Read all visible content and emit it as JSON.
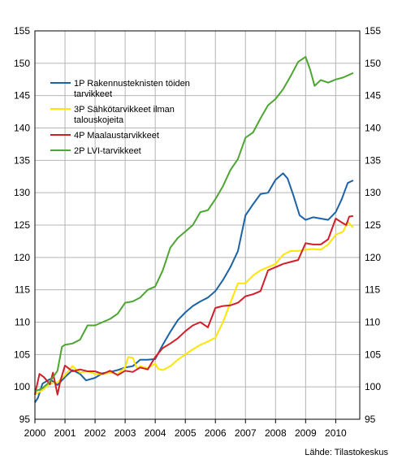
{
  "chart_data": {
    "type": "line",
    "source": "Lähde: Tilastokeskus",
    "x_ticks": [
      "2000",
      "2001",
      "2002",
      "2003",
      "2004",
      "2005",
      "2006",
      "2007",
      "2008",
      "2009",
      "2010"
    ],
    "ylim": [
      95,
      155
    ],
    "y_ticks": [
      "95",
      "100",
      "105",
      "110",
      "115",
      "120",
      "125",
      "130",
      "135",
      "140",
      "145",
      "150",
      "155"
    ],
    "grid": true,
    "legend_position": "top-left",
    "series": [
      {
        "name": "1P Rakennusteknisten töiden tarvikkeet",
        "legend_lines": [
          "1P Rakennusteknisten töiden",
          "tarvikkeet"
        ],
        "color": "#1c63a6",
        "points": [
          [
            2000.0,
            97.6
          ],
          [
            2000.1,
            98.3
          ],
          [
            2000.25,
            100.5
          ],
          [
            2000.5,
            101.2
          ],
          [
            2000.75,
            100.3
          ],
          [
            2001.0,
            101.5
          ],
          [
            2001.25,
            102.6
          ],
          [
            2001.5,
            102.0
          ],
          [
            2001.7,
            101.0
          ],
          [
            2002.0,
            101.4
          ],
          [
            2002.25,
            102.1
          ],
          [
            2002.5,
            102.3
          ],
          [
            2002.75,
            102.6
          ],
          [
            2003.0,
            103.0
          ],
          [
            2003.25,
            103.2
          ],
          [
            2003.5,
            104.2
          ],
          [
            2003.75,
            104.2
          ],
          [
            2004.0,
            104.3
          ],
          [
            2004.25,
            106.5
          ],
          [
            2004.5,
            108.5
          ],
          [
            2004.75,
            110.3
          ],
          [
            2005.0,
            111.5
          ],
          [
            2005.25,
            112.5
          ],
          [
            2005.5,
            113.2
          ],
          [
            2005.75,
            113.8
          ],
          [
            2006.0,
            114.8
          ],
          [
            2006.25,
            116.5
          ],
          [
            2006.5,
            118.5
          ],
          [
            2006.75,
            121.0
          ],
          [
            2007.0,
            126.5
          ],
          [
            2007.25,
            128.2
          ],
          [
            2007.5,
            129.8
          ],
          [
            2007.75,
            130.0
          ],
          [
            2008.0,
            132.0
          ],
          [
            2008.25,
            133.0
          ],
          [
            2008.4,
            132.2
          ],
          [
            2008.6,
            129.5
          ],
          [
            2008.8,
            126.5
          ],
          [
            2009.0,
            125.8
          ],
          [
            2009.25,
            126.2
          ],
          [
            2009.5,
            126.0
          ],
          [
            2009.75,
            125.8
          ],
          [
            2010.0,
            127.0
          ],
          [
            2010.2,
            129.0
          ],
          [
            2010.4,
            131.5
          ],
          [
            2010.58,
            131.9
          ]
        ]
      },
      {
        "name": "3P Sähkötarvikkeet ilman talouskojeita",
        "legend_lines": [
          "3P Sähkötarvikkeet ilman",
          "talouskojeita"
        ],
        "color": "#ffe500",
        "points": [
          [
            2000.0,
            98.8
          ],
          [
            2000.25,
            99.5
          ],
          [
            2000.5,
            100.5
          ],
          [
            2000.75,
            100.7
          ],
          [
            2001.0,
            101.8
          ],
          [
            2001.25,
            103.2
          ],
          [
            2001.5,
            102.2
          ],
          [
            2001.75,
            102.4
          ],
          [
            2002.0,
            102.0
          ],
          [
            2002.25,
            102.0
          ],
          [
            2002.5,
            102.2
          ],
          [
            2002.75,
            102.0
          ],
          [
            2003.0,
            103.0
          ],
          [
            2003.1,
            104.6
          ],
          [
            2003.25,
            104.5
          ],
          [
            2003.4,
            102.8
          ],
          [
            2003.5,
            103.2
          ],
          [
            2003.75,
            102.9
          ],
          [
            2004.0,
            103.6
          ],
          [
            2004.1,
            102.8
          ],
          [
            2004.25,
            102.6
          ],
          [
            2004.5,
            103.2
          ],
          [
            2004.75,
            104.2
          ],
          [
            2005.0,
            105.0
          ],
          [
            2005.25,
            105.8
          ],
          [
            2005.5,
            106.5
          ],
          [
            2005.75,
            107.0
          ],
          [
            2006.0,
            107.6
          ],
          [
            2006.25,
            110.0
          ],
          [
            2006.5,
            113.0
          ],
          [
            2006.75,
            116.0
          ],
          [
            2007.0,
            116.0
          ],
          [
            2007.25,
            117.2
          ],
          [
            2007.5,
            118.0
          ],
          [
            2007.75,
            118.5
          ],
          [
            2008.0,
            119.0
          ],
          [
            2008.25,
            120.4
          ],
          [
            2008.5,
            121.0
          ],
          [
            2008.75,
            121.0
          ],
          [
            2009.0,
            121.2
          ],
          [
            2009.25,
            121.3
          ],
          [
            2009.5,
            121.2
          ],
          [
            2009.75,
            122.0
          ],
          [
            2010.0,
            123.5
          ],
          [
            2010.25,
            124.0
          ],
          [
            2010.4,
            125.5
          ],
          [
            2010.58,
            124.6
          ]
        ]
      },
      {
        "name": "4P Maalaustarvikkeet",
        "legend_lines": [
          "4P Maalaustarvikkeet"
        ],
        "color": "#d01f28",
        "points": [
          [
            2000.0,
            98.8
          ],
          [
            2000.15,
            102.0
          ],
          [
            2000.3,
            101.5
          ],
          [
            2000.5,
            100.4
          ],
          [
            2000.6,
            102.2
          ],
          [
            2000.75,
            98.8
          ],
          [
            2000.85,
            101.0
          ],
          [
            2001.0,
            103.3
          ],
          [
            2001.25,
            102.4
          ],
          [
            2001.5,
            102.7
          ],
          [
            2001.75,
            102.4
          ],
          [
            2002.0,
            102.4
          ],
          [
            2002.25,
            102.0
          ],
          [
            2002.5,
            102.5
          ],
          [
            2002.75,
            101.8
          ],
          [
            2003.0,
            102.5
          ],
          [
            2003.25,
            102.3
          ],
          [
            2003.5,
            103.0
          ],
          [
            2003.75,
            102.7
          ],
          [
            2004.0,
            104.6
          ],
          [
            2004.25,
            106.0
          ],
          [
            2004.5,
            106.7
          ],
          [
            2004.75,
            107.5
          ],
          [
            2005.0,
            108.6
          ],
          [
            2005.25,
            109.5
          ],
          [
            2005.5,
            110.0
          ],
          [
            2005.75,
            109.2
          ],
          [
            2006.0,
            112.2
          ],
          [
            2006.25,
            112.5
          ],
          [
            2006.5,
            112.6
          ],
          [
            2006.75,
            113.0
          ],
          [
            2007.0,
            114.0
          ],
          [
            2007.25,
            114.3
          ],
          [
            2007.5,
            114.8
          ],
          [
            2007.75,
            118.0
          ],
          [
            2008.0,
            118.5
          ],
          [
            2008.25,
            119.0
          ],
          [
            2008.5,
            119.3
          ],
          [
            2008.75,
            119.6
          ],
          [
            2009.0,
            122.2
          ],
          [
            2009.25,
            122.0
          ],
          [
            2009.5,
            122.0
          ],
          [
            2009.75,
            122.8
          ],
          [
            2010.0,
            126.0
          ],
          [
            2010.2,
            125.4
          ],
          [
            2010.35,
            125.0
          ],
          [
            2010.45,
            126.3
          ],
          [
            2010.58,
            126.4
          ]
        ]
      },
      {
        "name": "2P LVI-tarvikkeet",
        "legend_lines": [
          "2P LVI-tarvikkeet"
        ],
        "color": "#4da632",
        "points": [
          [
            2000.0,
            99.3
          ],
          [
            2000.25,
            99.8
          ],
          [
            2000.5,
            100.8
          ],
          [
            2000.75,
            102.5
          ],
          [
            2000.9,
            106.2
          ],
          [
            2001.0,
            106.5
          ],
          [
            2001.25,
            106.7
          ],
          [
            2001.5,
            107.3
          ],
          [
            2001.75,
            109.5
          ],
          [
            2002.0,
            109.5
          ],
          [
            2002.25,
            110.0
          ],
          [
            2002.5,
            110.5
          ],
          [
            2002.75,
            111.3
          ],
          [
            2003.0,
            113.0
          ],
          [
            2003.25,
            113.2
          ],
          [
            2003.5,
            113.8
          ],
          [
            2003.75,
            115.0
          ],
          [
            2004.0,
            115.5
          ],
          [
            2004.25,
            118.0
          ],
          [
            2004.5,
            121.5
          ],
          [
            2004.75,
            123.0
          ],
          [
            2005.0,
            124.0
          ],
          [
            2005.25,
            125.0
          ],
          [
            2005.5,
            127.0
          ],
          [
            2005.75,
            127.3
          ],
          [
            2006.0,
            129.0
          ],
          [
            2006.25,
            131.0
          ],
          [
            2006.5,
            133.5
          ],
          [
            2006.75,
            135.2
          ],
          [
            2007.0,
            138.5
          ],
          [
            2007.25,
            139.3
          ],
          [
            2007.5,
            141.5
          ],
          [
            2007.75,
            143.5
          ],
          [
            2008.0,
            144.5
          ],
          [
            2008.25,
            146.0
          ],
          [
            2008.5,
            148.0
          ],
          [
            2008.75,
            150.2
          ],
          [
            2009.0,
            151.0
          ],
          [
            2009.15,
            149.0
          ],
          [
            2009.3,
            146.5
          ],
          [
            2009.5,
            147.4
          ],
          [
            2009.75,
            147.0
          ],
          [
            2010.0,
            147.5
          ],
          [
            2010.25,
            147.8
          ],
          [
            2010.58,
            148.5
          ]
        ]
      }
    ]
  }
}
